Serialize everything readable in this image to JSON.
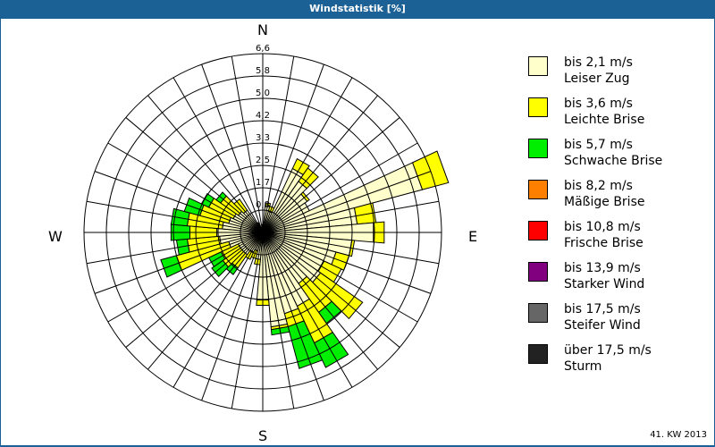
{
  "title": "Windstatistik [%]",
  "footer": "41. KW 2013",
  "compass": {
    "n": "N",
    "e": "E",
    "s": "S",
    "w": "W"
  },
  "legend": [
    {
      "range": "bis 2,1 m/s",
      "name": "Leiser Zug",
      "color": "#ffffcc"
    },
    {
      "range": "bis 3,6 m/s",
      "name": "Leichte Brise",
      "color": "#ffff00"
    },
    {
      "range": "bis 5,7 m/s",
      "name": "Schwache Brise",
      "color": "#00ee00"
    },
    {
      "range": "bis 8,2 m/s",
      "name": "Mäßige Brise",
      "color": "#ff8000"
    },
    {
      "range": "bis 10,8 m/s",
      "name": "Frische Brise",
      "color": "#ff0000"
    },
    {
      "range": "bis 13,9 m/s",
      "name": "Starker Wind",
      "color": "#800080"
    },
    {
      "range": "bis 17,5 m/s",
      "name": "Steifer Wind",
      "color": "#666666"
    },
    {
      "range": "über 17,5 m/s",
      "name": "Sturm",
      "color": "#222222"
    }
  ],
  "chart_data": {
    "type": "wind-rose",
    "title": "Windstatistik [%]",
    "ring_labels": [
      "0,8",
      "1,7",
      "2,5",
      "3,3",
      "4,2",
      "5,0",
      "5,8",
      "6,6"
    ],
    "rmax": 6.6,
    "directions_deg": [
      0,
      10,
      20,
      30,
      40,
      50,
      60,
      70,
      80,
      90,
      100,
      110,
      120,
      130,
      140,
      150,
      160,
      170,
      180,
      190,
      200,
      210,
      220,
      230,
      240,
      250,
      260,
      270,
      280,
      290,
      300,
      310,
      320,
      330,
      340,
      350
    ],
    "series": [
      {
        "name": "bis 2,1 m/s",
        "values": [
          0.3,
          1.0,
          0.8,
          2.6,
          2.3,
          2.0,
          1.9,
          6.1,
          3.5,
          4.1,
          3.3,
          2.8,
          2.5,
          2.6,
          2.3,
          3.0,
          3.1,
          3.5,
          2.5,
          1.0,
          0.7,
          0.8,
          1.0,
          1.0,
          1.0,
          1.3,
          1.6,
          1.7,
          1.5,
          1.3,
          1.2,
          1.1,
          1.0,
          0.3,
          0.2,
          0.2
        ]
      },
      {
        "name": "bis 3,6 m/s",
        "values": [
          0.0,
          0.1,
          0.2,
          0.4,
          0.6,
          0.1,
          0.0,
          1.0,
          0.7,
          0.4,
          0.1,
          0.5,
          0.7,
          1.9,
          1.3,
          1.5,
          0.5,
          0.1,
          0.2,
          0.2,
          0.3,
          0.3,
          0.6,
          0.8,
          0.7,
          2.0,
          1.2,
          1.0,
          1.3,
          1.1,
          1.0,
          0.8,
          0.5,
          0.1,
          0.0,
          0.0
        ]
      },
      {
        "name": "bis 5,7 m/s",
        "values": [
          0,
          0,
          0,
          0,
          0,
          0,
          0,
          0,
          0,
          0,
          0,
          0,
          0,
          0,
          0.5,
          1.0,
          1.6,
          0.2,
          0,
          0,
          0,
          0,
          0.3,
          0.5,
          0.5,
          0.6,
          0.4,
          0.7,
          0.6,
          0.6,
          0.3,
          0.2,
          0,
          0,
          0,
          0
        ]
      },
      {
        "name": "bis 8,2 m/s",
        "values": [
          0,
          0,
          0,
          0,
          0,
          0,
          0,
          0,
          0,
          0,
          0,
          0,
          0,
          0,
          0,
          0,
          0,
          0,
          0,
          0,
          0,
          0,
          0,
          0,
          0,
          0,
          0,
          0,
          0,
          0,
          0,
          0,
          0,
          0,
          0,
          0
        ]
      }
    ]
  }
}
